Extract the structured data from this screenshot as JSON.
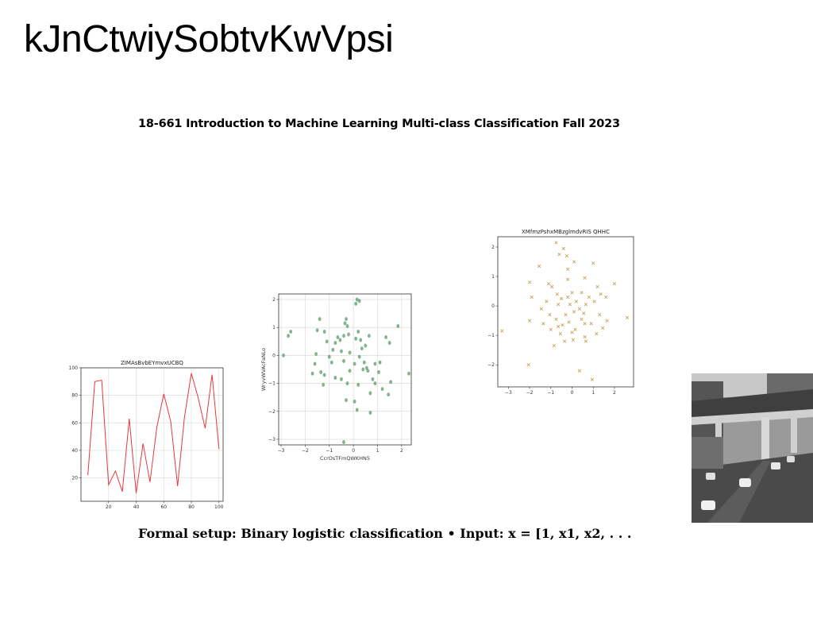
{
  "slide": {
    "title": "kJnCtwiySobtvKwVpsi",
    "course_header": "18-661 Introduction to Machine Learning Multi-class Classification Fall 2023",
    "formal_setup": "Formal setup: Binary logistic classification • Input: x = [1, x1, x2, . . ."
  },
  "photo": {
    "description_icon": "street-overpass-photo"
  },
  "chart_data": [
    {
      "type": "line",
      "title": "ZIMAsBvbEYmvxUCBQ",
      "xlabel": "",
      "ylabel": "",
      "xlim": [
        0,
        103
      ],
      "ylim": [
        3,
        100
      ],
      "xticks": [
        20,
        40,
        60,
        80,
        100
      ],
      "yticks": [
        20,
        40,
        60,
        80,
        100
      ],
      "grid": true,
      "color": "#e8383b",
      "x": [
        5,
        10,
        15,
        20,
        25,
        30,
        35,
        40,
        45,
        50,
        55,
        60,
        65,
        70,
        75,
        80,
        85,
        90,
        95,
        100
      ],
      "y": [
        22,
        90,
        91,
        15,
        25,
        10,
        63,
        9,
        45,
        17,
        57,
        81,
        61,
        14,
        64,
        96,
        78,
        56,
        95,
        41
      ]
    },
    {
      "type": "scatter",
      "title": "",
      "xlabel": "CcrOsTFmQWKHN5",
      "ylabel": "WryvWVAcFaNLo",
      "xlim": [
        -3.1,
        2.4
      ],
      "ylim": [
        -3.2,
        2.2
      ],
      "xticks": [
        -3,
        -2,
        -1,
        0,
        1,
        2
      ],
      "yticks": [
        -3,
        -2,
        -1,
        0,
        1,
        2
      ],
      "grid": true,
      "color": "#5a9a6a",
      "marker": "circle",
      "points": [
        [
          0.15,
          2.0
        ],
        [
          0.25,
          1.95
        ],
        [
          0.1,
          1.85
        ],
        [
          -1.4,
          1.3
        ],
        [
          -0.3,
          1.3
        ],
        [
          -0.35,
          1.15
        ],
        [
          -2.6,
          0.85
        ],
        [
          -2.7,
          0.7
        ],
        [
          -1.5,
          0.9
        ],
        [
          -1.2,
          0.85
        ],
        [
          -0.25,
          1.05
        ],
        [
          0.2,
          0.85
        ],
        [
          -0.65,
          0.65
        ],
        [
          -0.4,
          0.7
        ],
        [
          -0.55,
          0.55
        ],
        [
          -0.75,
          0.45
        ],
        [
          -1.1,
          0.5
        ],
        [
          -0.2,
          0.75
        ],
        [
          0.1,
          0.6
        ],
        [
          0.3,
          0.55
        ],
        [
          0.65,
          0.7
        ],
        [
          1.35,
          0.65
        ],
        [
          1.85,
          1.05
        ],
        [
          1.5,
          0.45
        ],
        [
          -0.85,
          0.2
        ],
        [
          -0.5,
          0.15
        ],
        [
          -0.15,
          0.1
        ],
        [
          0.35,
          0.25
        ],
        [
          0.5,
          0.35
        ],
        [
          -1.0,
          -0.05
        ],
        [
          -1.55,
          0.05
        ],
        [
          -0.4,
          -0.2
        ],
        [
          0.05,
          -0.3
        ],
        [
          0.45,
          -0.25
        ],
        [
          0.9,
          -0.3
        ],
        [
          1.1,
          -0.25
        ],
        [
          0.25,
          -0.05
        ],
        [
          -2.9,
          0.0
        ],
        [
          -1.6,
          -0.3
        ],
        [
          -1.35,
          -0.6
        ],
        [
          -1.7,
          -0.65
        ],
        [
          -1.2,
          -0.7
        ],
        [
          -0.9,
          -0.25
        ],
        [
          -0.15,
          -0.55
        ],
        [
          0.4,
          -0.5
        ],
        [
          0.6,
          -0.55
        ],
        [
          1.05,
          -0.6
        ],
        [
          0.8,
          -0.85
        ],
        [
          1.55,
          -0.95
        ],
        [
          2.3,
          -0.65
        ],
        [
          -0.5,
          -0.85
        ],
        [
          -0.25,
          -1.0
        ],
        [
          0.2,
          -1.05
        ],
        [
          0.7,
          -1.35
        ],
        [
          1.2,
          -1.2
        ],
        [
          1.45,
          -1.4
        ],
        [
          -0.3,
          -1.6
        ],
        [
          0.05,
          -1.65
        ],
        [
          0.15,
          -1.95
        ],
        [
          0.7,
          -2.05
        ],
        [
          -0.4,
          -3.1
        ],
        [
          -1.25,
          -1.05
        ],
        [
          -0.75,
          -0.8
        ],
        [
          0.55,
          -0.45
        ],
        [
          0.9,
          -1.0
        ]
      ]
    },
    {
      "type": "scatter",
      "title": "XMfmzPshxMBzglmdvRIS QHHC",
      "xlabel": "",
      "ylabel": "",
      "xlim": [
        -3.5,
        2.9
      ],
      "ylim": [
        -2.75,
        2.35
      ],
      "xticks": [
        -3,
        -2,
        -1,
        0,
        1,
        2
      ],
      "yticks": [
        -2,
        -1,
        0,
        1,
        2
      ],
      "grid": false,
      "color": "#c9a35e",
      "marker": "x",
      "points": [
        [
          -0.75,
          2.15
        ],
        [
          -0.4,
          1.95
        ],
        [
          -0.6,
          1.75
        ],
        [
          -0.25,
          1.7
        ],
        [
          -1.55,
          1.35
        ],
        [
          0.1,
          1.5
        ],
        [
          1.0,
          1.45
        ],
        [
          -0.2,
          1.25
        ],
        [
          -2.0,
          0.8
        ],
        [
          -1.1,
          0.75
        ],
        [
          -0.95,
          0.65
        ],
        [
          -0.2,
          0.9
        ],
        [
          0.6,
          0.95
        ],
        [
          1.2,
          0.65
        ],
        [
          2.0,
          0.75
        ],
        [
          -1.9,
          0.3
        ],
        [
          -0.7,
          0.4
        ],
        [
          0.0,
          0.45
        ],
        [
          0.45,
          0.45
        ],
        [
          1.35,
          0.4
        ],
        [
          1.6,
          0.3
        ],
        [
          -1.2,
          0.15
        ],
        [
          -0.5,
          0.25
        ],
        [
          -0.2,
          0.3
        ],
        [
          0.2,
          0.15
        ],
        [
          0.65,
          0.05
        ],
        [
          1.05,
          0.15
        ],
        [
          -0.65,
          0.05
        ],
        [
          -0.1,
          0.05
        ],
        [
          0.35,
          -0.1
        ],
        [
          -1.05,
          -0.3
        ],
        [
          -0.75,
          -0.45
        ],
        [
          -0.3,
          -0.3
        ],
        [
          0.1,
          -0.2
        ],
        [
          0.55,
          -0.25
        ],
        [
          1.3,
          -0.3
        ],
        [
          2.6,
          -0.4
        ],
        [
          -2.0,
          -0.5
        ],
        [
          -1.35,
          -0.6
        ],
        [
          -0.65,
          -0.7
        ],
        [
          -0.15,
          -0.55
        ],
        [
          0.45,
          -0.45
        ],
        [
          0.9,
          -0.6
        ],
        [
          -0.55,
          -0.95
        ],
        [
          0.0,
          -0.9
        ],
        [
          0.6,
          -0.6
        ],
        [
          1.45,
          -0.75
        ],
        [
          -3.3,
          -0.85
        ],
        [
          -1.0,
          -0.8
        ],
        [
          0.15,
          -0.8
        ],
        [
          0.6,
          -1.05
        ],
        [
          1.15,
          -0.95
        ],
        [
          -0.35,
          -1.2
        ],
        [
          -0.85,
          -1.35
        ],
        [
          0.65,
          -1.2
        ],
        [
          0.05,
          -1.15
        ],
        [
          -2.05,
          -2.0
        ],
        [
          0.35,
          -2.2
        ],
        [
          0.95,
          -2.5
        ],
        [
          1.65,
          -0.5
        ],
        [
          -1.45,
          -0.1
        ],
        [
          0.8,
          0.3
        ],
        [
          -0.45,
          -0.65
        ]
      ]
    }
  ]
}
